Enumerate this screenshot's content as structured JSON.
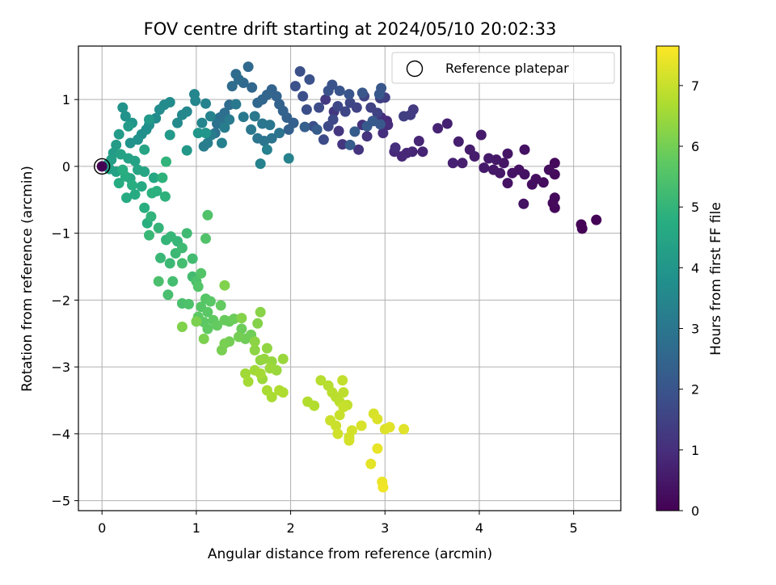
{
  "chart_data": {
    "type": "scatter",
    "title": "FOV centre drift starting at 2024/05/10 20:02:33",
    "xlabel": "Angular distance from reference (arcmin)",
    "ylabel": "Rotation from reference (arcmin)",
    "xlim": [
      -0.25,
      5.5
    ],
    "ylim": [
      -5.15,
      1.8
    ],
    "xticks": [
      "0",
      "1",
      "2",
      "3",
      "4",
      "5"
    ],
    "yticks": [
      "-5",
      "-4",
      "-3",
      "-2",
      "-1",
      "0",
      "1"
    ],
    "grid": true,
    "colormap": "viridis",
    "colorbar": {
      "label": "Hours from first FF file",
      "range": [
        0,
        7.65
      ],
      "ticks": [
        "0",
        "1",
        "2",
        "3",
        "4",
        "5",
        "6",
        "7"
      ]
    },
    "legend": {
      "position": "top-right",
      "entries": [
        "Reference platepar"
      ]
    },
    "reference_point": {
      "x": 0,
      "y": 0
    },
    "points": [
      [
        5.24,
        -0.8,
        0.05
      ],
      [
        5.08,
        -0.87,
        0.05
      ],
      [
        5.09,
        -0.93,
        0.05
      ],
      [
        4.8,
        -0.62,
        0.15
      ],
      [
        4.8,
        -0.47,
        0.2
      ],
      [
        4.78,
        -0.55,
        0.2
      ],
      [
        4.8,
        0.05,
        0.2
      ],
      [
        4.8,
        -0.12,
        0.2
      ],
      [
        4.74,
        -0.05,
        0.25
      ],
      [
        4.68,
        -0.24,
        0.25
      ],
      [
        4.6,
        -0.19,
        0.3
      ],
      [
        4.56,
        -0.27,
        0.3
      ],
      [
        4.48,
        -0.12,
        0.35
      ],
      [
        4.47,
        -0.56,
        0.35
      ],
      [
        4.48,
        0.25,
        0.35
      ],
      [
        4.42,
        -0.05,
        0.35
      ],
      [
        4.35,
        -0.1,
        0.4
      ],
      [
        4.3,
        -0.25,
        0.4
      ],
      [
        4.3,
        0.19,
        0.45
      ],
      [
        4.26,
        0.05,
        0.45
      ],
      [
        4.22,
        -0.1,
        0.5
      ],
      [
        4.18,
        0.1,
        0.5
      ],
      [
        4.15,
        -0.05,
        0.5
      ],
      [
        4.1,
        0.12,
        0.55
      ],
      [
        4.05,
        -0.02,
        0.55
      ],
      [
        4.02,
        0.47,
        0.55
      ],
      [
        3.95,
        0.15,
        0.6
      ],
      [
        3.9,
        0.25,
        0.6
      ],
      [
        3.82,
        0.05,
        0.65
      ],
      [
        3.78,
        0.37,
        0.65
      ],
      [
        3.72,
        0.05,
        0.7
      ],
      [
        3.66,
        0.64,
        0.7
      ],
      [
        3.56,
        0.57,
        0.75
      ],
      [
        3.4,
        0.22,
        0.75
      ],
      [
        3.36,
        0.38,
        0.8
      ],
      [
        3.29,
        0.22,
        0.8
      ],
      [
        3.23,
        0.2,
        0.85
      ],
      [
        3.18,
        0.15,
        0.85
      ],
      [
        3.1,
        0.22,
        0.9
      ],
      [
        3.02,
        0.68,
        0.9
      ],
      [
        2.96,
        0.73,
        0.95
      ],
      [
        3.03,
        0.62,
        0.95
      ],
      [
        3.11,
        0.28,
        1.0
      ],
      [
        2.98,
        0.5,
        1.0
      ],
      [
        2.88,
        0.68,
        1.05
      ],
      [
        2.81,
        0.45,
        1.1
      ],
      [
        2.76,
        0.62,
        1.1
      ],
      [
        2.72,
        0.25,
        1.15
      ],
      [
        2.55,
        0.33,
        1.2
      ],
      [
        2.51,
        0.53,
        1.2
      ],
      [
        2.46,
        0.82,
        1.25
      ],
      [
        2.37,
        1.0,
        1.3
      ],
      [
        3.3,
        0.85,
        1.3
      ],
      [
        3.27,
        0.77,
        1.35
      ],
      [
        3.2,
        0.75,
        1.4
      ],
      [
        3.0,
        1.03,
        1.4
      ],
      [
        2.95,
        1.02,
        1.45
      ],
      [
        2.92,
        0.8,
        1.5
      ],
      [
        2.85,
        0.88,
        1.5
      ],
      [
        2.78,
        1.05,
        1.55
      ],
      [
        2.7,
        0.88,
        1.55
      ],
      [
        2.63,
        0.95,
        1.6
      ],
      [
        2.58,
        0.82,
        1.6
      ],
      [
        2.5,
        0.9,
        1.65
      ],
      [
        2.45,
        0.7,
        1.7
      ],
      [
        2.4,
        0.6,
        1.7
      ],
      [
        2.35,
        0.4,
        1.75
      ],
      [
        2.3,
        0.88,
        1.75
      ],
      [
        2.24,
        0.6,
        1.8
      ],
      [
        2.17,
        0.85,
        1.8
      ],
      [
        2.13,
        1.05,
        1.85
      ],
      [
        2.1,
        1.42,
        1.85
      ],
      [
        2.05,
        1.2,
        1.9
      ],
      [
        2.2,
        1.3,
        1.9
      ],
      [
        2.44,
        1.22,
        1.95
      ],
      [
        2.4,
        1.13,
        1.95
      ],
      [
        2.52,
        1.13,
        2.0
      ],
      [
        2.62,
        1.08,
        2.0
      ],
      [
        2.76,
        1.1,
        2.05
      ],
      [
        2.96,
        1.17,
        2.05
      ],
      [
        2.94,
        1.08,
        2.1
      ],
      [
        2.95,
        0.63,
        2.1
      ],
      [
        2.87,
        0.68,
        2.15
      ],
      [
        2.81,
        0.6,
        2.15
      ],
      [
        2.68,
        0.52,
        2.2
      ],
      [
        2.63,
        0.32,
        2.25
      ],
      [
        2.28,
        0.55,
        2.25
      ],
      [
        2.15,
        0.59,
        2.3
      ],
      [
        2.03,
        0.65,
        2.3
      ],
      [
        1.98,
        0.55,
        2.35
      ],
      [
        1.96,
        0.73,
        2.35
      ],
      [
        1.92,
        0.83,
        2.4
      ],
      [
        1.88,
        0.93,
        2.4
      ],
      [
        1.85,
        1.05,
        2.45
      ],
      [
        1.8,
        1.15,
        2.45
      ],
      [
        1.75,
        1.07,
        2.5
      ],
      [
        1.7,
        1.0,
        2.5
      ],
      [
        1.65,
        0.95,
        2.55
      ],
      [
        1.59,
        1.18,
        2.55
      ],
      [
        1.55,
        1.49,
        2.6
      ],
      [
        1.5,
        1.25,
        2.6
      ],
      [
        1.45,
        1.3,
        2.65
      ],
      [
        1.42,
        1.38,
        2.65
      ],
      [
        1.38,
        1.2,
        2.7
      ],
      [
        1.35,
        0.92,
        2.7
      ],
      [
        1.3,
        0.8,
        2.75
      ],
      [
        1.28,
        0.62,
        2.8
      ],
      [
        1.25,
        0.73,
        2.8
      ],
      [
        1.22,
        0.64,
        2.85
      ],
      [
        1.2,
        0.5,
        2.85
      ],
      [
        1.8,
        0.42,
        2.9
      ],
      [
        1.88,
        0.5,
        2.9
      ],
      [
        1.72,
        0.38,
        2.95
      ],
      [
        1.65,
        0.42,
        2.95
      ],
      [
        1.78,
        0.62,
        3.0
      ],
      [
        1.7,
        0.64,
        3.0
      ],
      [
        1.62,
        0.75,
        3.05
      ],
      [
        1.58,
        0.55,
        3.05
      ],
      [
        1.5,
        0.74,
        3.1
      ],
      [
        1.42,
        0.93,
        3.1
      ],
      [
        1.35,
        0.7,
        3.15
      ],
      [
        1.3,
        0.58,
        3.2
      ],
      [
        1.16,
        0.47,
        3.2
      ],
      [
        1.12,
        0.35,
        3.25
      ],
      [
        1.08,
        0.3,
        3.25
      ],
      [
        1.27,
        0.35,
        3.3
      ],
      [
        1.75,
        0.25,
        3.3
      ],
      [
        1.98,
        0.12,
        3.35
      ],
      [
        1.68,
        0.04,
        3.35
      ],
      [
        1.15,
        0.75,
        3.4
      ],
      [
        1.1,
        0.94,
        3.4
      ],
      [
        1.06,
        0.65,
        3.45
      ],
      [
        0.98,
        1.08,
        3.5
      ],
      [
        0.99,
        0.98,
        3.5
      ],
      [
        0.9,
        0.82,
        3.55
      ],
      [
        0.85,
        0.77,
        3.55
      ],
      [
        0.8,
        0.65,
        3.6
      ],
      [
        0.72,
        0.96,
        3.65
      ],
      [
        0.66,
        0.92,
        3.65
      ],
      [
        0.61,
        0.85,
        3.7
      ],
      [
        0.57,
        0.72,
        3.7
      ],
      [
        0.5,
        0.62,
        3.75
      ],
      [
        0.47,
        0.55,
        3.8
      ],
      [
        0.42,
        0.48,
        3.8
      ],
      [
        0.38,
        0.4,
        3.85
      ],
      [
        0.3,
        0.35,
        3.85
      ],
      [
        0.22,
        0.88,
        3.9
      ],
      [
        0.25,
        0.75,
        3.9
      ],
      [
        0.32,
        0.65,
        3.95
      ],
      [
        1.02,
        0.5,
        4.0
      ],
      [
        1.1,
        0.5,
        4.0
      ],
      [
        0.9,
        0.24,
        4.05
      ],
      [
        0.72,
        0.47,
        4.1
      ],
      [
        0.5,
        0.7,
        4.1
      ],
      [
        0.28,
        0.6,
        4.15
      ],
      [
        0.18,
        0.48,
        4.15
      ],
      [
        0.15,
        0.32,
        4.2
      ],
      [
        0.12,
        0.2,
        4.2
      ],
      [
        0.1,
        0.1,
        4.25
      ],
      [
        0.06,
        0.03,
        4.3
      ],
      [
        0.08,
        -0.04,
        4.3
      ],
      [
        0.15,
        -0.08,
        4.35
      ],
      [
        0.2,
        0.18,
        4.35
      ],
      [
        0.28,
        0.12,
        4.4
      ],
      [
        0.35,
        0.08,
        4.4
      ],
      [
        0.45,
        0.25,
        4.45
      ],
      [
        0.38,
        -0.05,
        4.45
      ],
      [
        0.3,
        -0.18,
        4.5
      ],
      [
        0.45,
        -0.08,
        4.5
      ],
      [
        0.55,
        -0.17,
        4.55
      ],
      [
        0.42,
        -0.3,
        4.6
      ],
      [
        0.35,
        -0.42,
        4.65
      ],
      [
        0.26,
        -0.47,
        4.65
      ],
      [
        0.18,
        -0.25,
        4.7
      ],
      [
        0.25,
        -0.15,
        4.7
      ],
      [
        0.22,
        -0.05,
        4.75
      ],
      [
        0.32,
        -0.28,
        4.75
      ],
      [
        0.45,
        -0.62,
        4.8
      ],
      [
        0.48,
        -0.85,
        4.8
      ],
      [
        0.53,
        -0.4,
        4.85
      ],
      [
        0.58,
        -0.37,
        4.85
      ],
      [
        0.67,
        -0.45,
        4.9
      ],
      [
        0.64,
        -0.17,
        4.9
      ],
      [
        0.68,
        0.07,
        4.95
      ],
      [
        0.52,
        -0.75,
        4.95
      ],
      [
        0.6,
        -0.92,
        5.0
      ],
      [
        0.68,
        -1.1,
        5.0
      ],
      [
        0.73,
        -1.05,
        5.05
      ],
      [
        0.8,
        -1.12,
        5.05
      ],
      [
        0.5,
        -1.03,
        5.1
      ],
      [
        0.62,
        -1.37,
        5.1
      ],
      [
        0.72,
        -1.45,
        5.15
      ],
      [
        0.78,
        -1.3,
        5.15
      ],
      [
        0.85,
        -1.22,
        5.2
      ],
      [
        0.9,
        -1.0,
        5.2
      ],
      [
        0.96,
        -1.38,
        5.25
      ],
      [
        0.96,
        -1.65,
        5.25
      ],
      [
        0.85,
        -1.45,
        5.3
      ],
      [
        0.75,
        -1.72,
        5.3
      ],
      [
        0.7,
        -1.92,
        5.35
      ],
      [
        0.6,
        -1.72,
        5.4
      ],
      [
        0.85,
        -2.05,
        5.4
      ],
      [
        0.92,
        -2.06,
        5.45
      ],
      [
        1.0,
        -1.72,
        5.45
      ],
      [
        1.1,
        -1.08,
        5.5
      ],
      [
        1.12,
        -0.73,
        5.5
      ],
      [
        1.05,
        -1.6,
        5.55
      ],
      [
        1.02,
        -1.8,
        5.55
      ],
      [
        1.1,
        -1.98,
        5.6
      ],
      [
        1.05,
        -2.1,
        5.6
      ],
      [
        1.15,
        -2.02,
        5.65
      ],
      [
        1.12,
        -2.18,
        5.65
      ],
      [
        1.02,
        -2.25,
        5.7
      ],
      [
        1.08,
        -2.33,
        5.7
      ],
      [
        1.12,
        -2.43,
        5.75
      ],
      [
        1.18,
        -2.3,
        5.75
      ],
      [
        1.22,
        -2.38,
        5.8
      ],
      [
        1.26,
        -2.08,
        5.8
      ],
      [
        1.3,
        -2.3,
        5.85
      ],
      [
        1.35,
        -2.32,
        5.85
      ],
      [
        1.4,
        -2.28,
        5.9
      ],
      [
        1.48,
        -2.43,
        5.9
      ],
      [
        1.52,
        -2.58,
        5.95
      ],
      [
        1.58,
        -2.52,
        5.95
      ],
      [
        1.45,
        -2.55,
        6.0
      ],
      [
        1.35,
        -2.62,
        6.0
      ],
      [
        1.27,
        -2.75,
        6.05
      ],
      [
        1.3,
        -2.65,
        6.05
      ],
      [
        1.08,
        -2.58,
        6.1
      ],
      [
        1.0,
        -2.32,
        6.1
      ],
      [
        0.85,
        -2.4,
        6.15
      ],
      [
        1.3,
        -1.78,
        6.15
      ],
      [
        1.48,
        -2.27,
        6.2
      ],
      [
        1.65,
        -2.35,
        6.2
      ],
      [
        1.68,
        -2.18,
        6.25
      ],
      [
        1.62,
        -2.62,
        6.3
      ],
      [
        1.62,
        -2.75,
        6.3
      ],
      [
        1.68,
        -2.9,
        6.35
      ],
      [
        1.75,
        -2.72,
        6.35
      ],
      [
        1.72,
        -2.88,
        6.4
      ],
      [
        1.8,
        -2.92,
        6.4
      ],
      [
        1.85,
        -3.05,
        6.45
      ],
      [
        1.92,
        -2.88,
        6.45
      ],
      [
        1.78,
        -3.02,
        6.5
      ],
      [
        1.7,
        -3.18,
        6.5
      ],
      [
        1.62,
        -3.05,
        6.55
      ],
      [
        1.52,
        -3.1,
        6.55
      ],
      [
        1.55,
        -3.22,
        6.6
      ],
      [
        1.68,
        -3.1,
        6.6
      ],
      [
        1.75,
        -3.35,
        6.65
      ],
      [
        1.8,
        -3.45,
        6.65
      ],
      [
        1.88,
        -3.35,
        6.7
      ],
      [
        1.92,
        -3.38,
        6.7
      ],
      [
        2.18,
        -3.52,
        6.75
      ],
      [
        2.25,
        -3.58,
        6.75
      ],
      [
        2.32,
        -3.2,
        6.8
      ],
      [
        2.4,
        -3.28,
        6.8
      ],
      [
        2.44,
        -3.38,
        6.85
      ],
      [
        2.48,
        -3.45,
        6.85
      ],
      [
        2.52,
        -3.52,
        6.9
      ],
      [
        2.56,
        -3.38,
        6.9
      ],
      [
        2.55,
        -3.2,
        6.95
      ],
      [
        2.6,
        -3.57,
        6.95
      ],
      [
        2.56,
        -3.6,
        7.0
      ],
      [
        2.52,
        -3.72,
        7.0
      ],
      [
        2.42,
        -3.8,
        7.05
      ],
      [
        2.48,
        -3.88,
        7.05
      ],
      [
        2.5,
        -4.0,
        7.1
      ],
      [
        2.62,
        -4.05,
        7.1
      ],
      [
        2.65,
        -3.95,
        7.15
      ],
      [
        2.62,
        -4.1,
        7.15
      ],
      [
        2.75,
        -3.88,
        7.2
      ],
      [
        2.88,
        -3.7,
        7.2
      ],
      [
        2.92,
        -3.78,
        7.25
      ],
      [
        3.0,
        -3.93,
        7.25
      ],
      [
        3.05,
        -3.9,
        7.3
      ],
      [
        3.2,
        -3.93,
        7.3
      ],
      [
        2.85,
        -4.45,
        7.35
      ],
      [
        2.92,
        -4.22,
        7.4
      ],
      [
        2.97,
        -4.72,
        7.45
      ],
      [
        2.98,
        -4.8,
        7.5
      ]
    ]
  }
}
